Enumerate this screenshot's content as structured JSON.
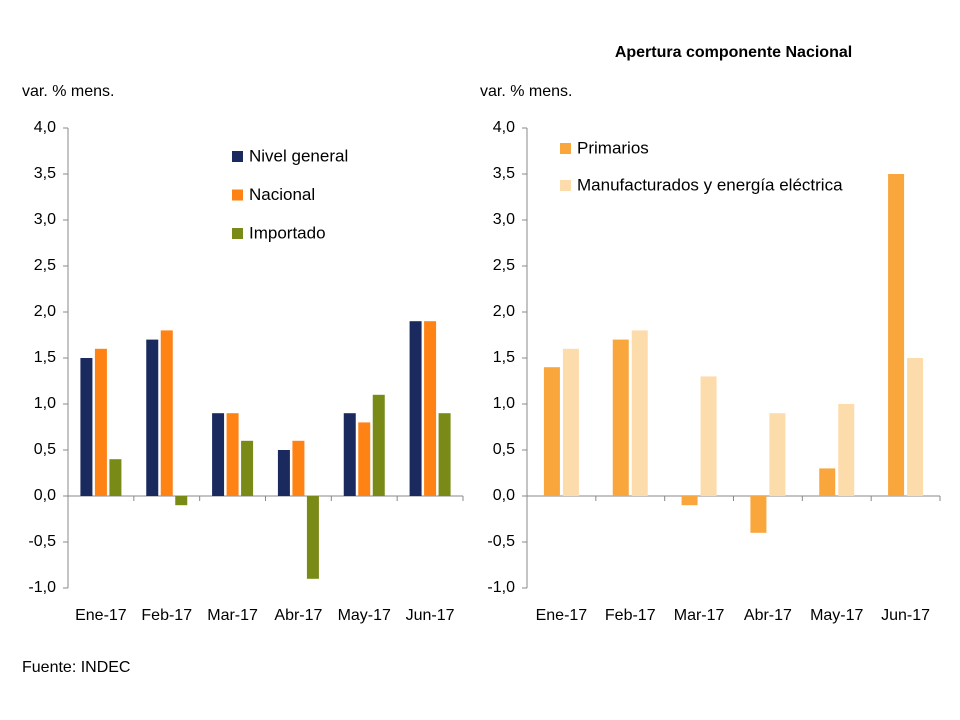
{
  "chart_data": [
    {
      "type": "bar",
      "y_label": "var. % mens.",
      "categories": [
        "Ene-17",
        "Feb-17",
        "Mar-17",
        "Abr-17",
        "May-17",
        "Jun-17"
      ],
      "series": [
        {
          "name": "Nivel general",
          "color": "#1b2a5e",
          "values": [
            1.5,
            1.7,
            0.9,
            0.5,
            0.9,
            1.9
          ]
        },
        {
          "name": "Nacional",
          "color": "#ff8214",
          "values": [
            1.6,
            1.8,
            0.9,
            0.6,
            0.8,
            1.9
          ]
        },
        {
          "name": "Importado",
          "color": "#7a8a17",
          "values": [
            0.4,
            -0.1,
            0.6,
            -0.9,
            1.1,
            0.9
          ]
        }
      ],
      "ylim": [
        -1,
        4
      ],
      "yticks": [
        {
          "value": -1,
          "label": "-1,0"
        },
        {
          "value": -0.5,
          "label": "-0,5"
        },
        {
          "value": 0,
          "label": "0,0"
        },
        {
          "value": 0.5,
          "label": "0,5"
        },
        {
          "value": 1,
          "label": "1,0"
        },
        {
          "value": 1.5,
          "label": "1,5"
        },
        {
          "value": 2,
          "label": "2,0"
        },
        {
          "value": 2.5,
          "label": "2,5"
        },
        {
          "value": 3,
          "label": "3,0"
        },
        {
          "value": 3.5,
          "label": "3,5"
        },
        {
          "value": 4,
          "label": "4,0"
        }
      ],
      "grid": false,
      "legend": "top-right"
    },
    {
      "type": "bar",
      "title": "Apertura componente Nacional",
      "y_label": "var. % mens.",
      "categories": [
        "Ene-17",
        "Feb-17",
        "Mar-17",
        "Abr-17",
        "May-17",
        "Jun-17"
      ],
      "series": [
        {
          "name": "Primarios",
          "color": "#f9a63c",
          "values": [
            1.4,
            1.7,
            -0.1,
            -0.4,
            0.3,
            3.5
          ]
        },
        {
          "name": "Manufacturados y energía eléctrica",
          "color": "#fddcab",
          "values": [
            1.6,
            1.8,
            1.3,
            0.9,
            1.0,
            1.5
          ]
        }
      ],
      "ylim": [
        -1,
        4
      ],
      "yticks": [
        {
          "value": -1,
          "label": "-1,0"
        },
        {
          "value": -0.5,
          "label": "-0,5"
        },
        {
          "value": 0,
          "label": "0,0"
        },
        {
          "value": 0.5,
          "label": "0,5"
        },
        {
          "value": 1,
          "label": "1,0"
        },
        {
          "value": 1.5,
          "label": "1,5"
        },
        {
          "value": 2,
          "label": "2,0"
        },
        {
          "value": 2.5,
          "label": "2,5"
        },
        {
          "value": 3,
          "label": "3,0"
        },
        {
          "value": 3.5,
          "label": "3,5"
        },
        {
          "value": 4,
          "label": "4,0"
        }
      ],
      "grid": false,
      "legend": "top-left"
    }
  ],
  "source": "Fuente: INDEC"
}
